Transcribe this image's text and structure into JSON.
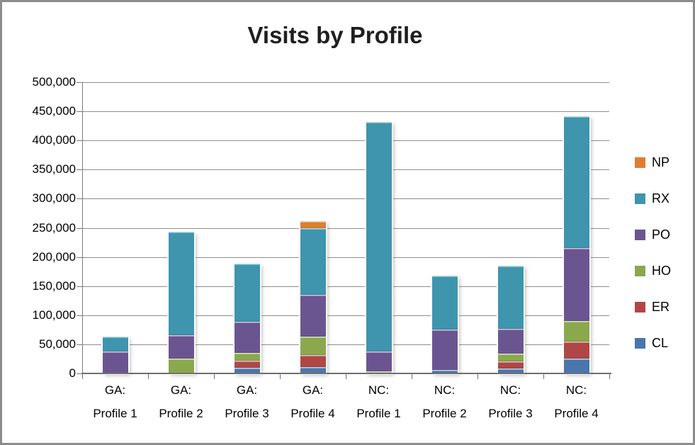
{
  "window": {
    "background": "#ffffff",
    "border_color": "#8c8c8c"
  },
  "chart_data": {
    "type": "bar",
    "stacked": true,
    "title": "Visits by Profile",
    "xlabel": "",
    "ylabel": "",
    "grid": true,
    "gridline_color": "#8e8e8e",
    "axis_line_color": "#6f6f6f",
    "text_color": "#000000",
    "categories": [
      {
        "line1": "GA:",
        "line2": "Profile 1"
      },
      {
        "line1": "GA:",
        "line2": "Profile 2"
      },
      {
        "line1": "GA:",
        "line2": "Profile 3"
      },
      {
        "line1": "GA:",
        "line2": "Profile 4"
      },
      {
        "line1": "NC:",
        "line2": "Profile 1"
      },
      {
        "line1": "NC:",
        "line2": "Profile 2"
      },
      {
        "line1": "NC:",
        "line2": "Profile 3"
      },
      {
        "line1": "NC:",
        "line2": "Profile 4"
      }
    ],
    "series": [
      {
        "name": "CL",
        "color": "#4a76ac",
        "values": [
          0,
          0,
          10000,
          11000,
          0,
          6000,
          9000,
          25000
        ]
      },
      {
        "name": "ER",
        "color": "#af4746",
        "values": [
          0,
          0,
          12000,
          21000,
          0,
          0,
          12000,
          30000
        ]
      },
      {
        "name": "HO",
        "color": "#8ba84d",
        "values": [
          0,
          25000,
          13000,
          31000,
          4000,
          0,
          13000,
          35000
        ]
      },
      {
        "name": "PO",
        "color": "#6b5591",
        "values": [
          38000,
          41000,
          54000,
          72000,
          34000,
          70000,
          43000,
          125000
        ]
      },
      {
        "name": "RX",
        "color": "#3e95ad",
        "values": [
          25000,
          177000,
          99000,
          115000,
          394000,
          92000,
          108000,
          227000
        ]
      },
      {
        "name": "NP",
        "color": "#de7e32",
        "values": [
          0,
          0,
          0,
          11000,
          0,
          0,
          0,
          0
        ]
      }
    ],
    "stack_order_bottom_to_top": [
      "CL",
      "ER",
      "HO",
      "PO",
      "RX",
      "NP"
    ],
    "legend": {
      "position": "right",
      "order_top_to_bottom": [
        "NP",
        "RX",
        "PO",
        "HO",
        "ER",
        "CL"
      ]
    },
    "y_axis": {
      "min": 0,
      "max": 500000,
      "tick_interval": 50000,
      "ticks": [
        {
          "value": 500000,
          "label": "500,000"
        },
        {
          "value": 450000,
          "label": "450,000"
        },
        {
          "value": 400000,
          "label": "400,000"
        },
        {
          "value": 350000,
          "label": "350,000"
        },
        {
          "value": 300000,
          "label": "300,000"
        },
        {
          "value": 250000,
          "label": "250,000"
        },
        {
          "value": 200000,
          "label": "200,000"
        },
        {
          "value": 150000,
          "label": "150,000"
        },
        {
          "value": 100000,
          "label": "100,000"
        },
        {
          "value": 50000,
          "label": "50,000"
        },
        {
          "value": 0,
          "label": "0"
        }
      ]
    }
  }
}
